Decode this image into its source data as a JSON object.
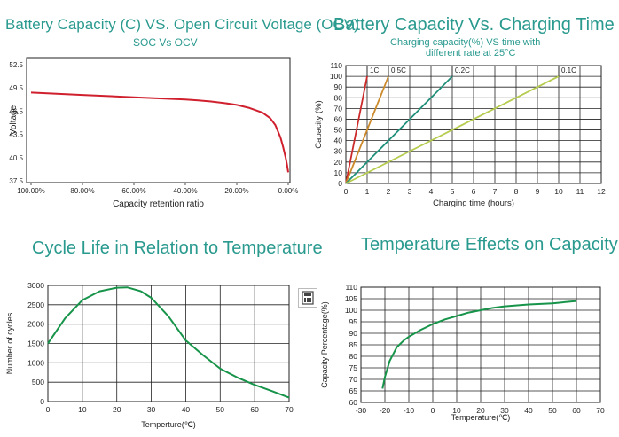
{
  "titles": {
    "ocv": "Battery Capacity (C)  VS.  Open Circuit Voltage (OCV)",
    "ocv_sub": "SOC Vs OCV",
    "charge": "Battery  Capacity Vs.   Charging   Time",
    "charge_sub1": "Charging capacity(%) VS  time with",
    "charge_sub2": "different rate at 25°C",
    "cycle": "Cycle  Life in  Relation to Temperature",
    "temp": "Temperature  Effects  on  Capacity"
  },
  "toolbar": {
    "calculator_icon": "calculator-icon"
  },
  "chart_data": [
    {
      "id": "ocv",
      "type": "line",
      "xlabel": "Capacity retention ratio",
      "ylabel": "Voltage",
      "x_ticks": [
        "100.00%",
        "80.00%",
        "60.00%",
        "40.00%",
        "20.00%",
        "0.00%"
      ],
      "y_ticks": [
        "37.5",
        "40.5",
        "43.5",
        "46.5",
        "49.5",
        "52.5"
      ],
      "xlim": [
        100,
        0
      ],
      "ylim": [
        37.5,
        53.5
      ],
      "grid": false,
      "color": "#d0202e",
      "series": [
        {
          "x": [
            100,
            90,
            80,
            70,
            60,
            50,
            40,
            35,
            30,
            25,
            20,
            15,
            10,
            7,
            5,
            3,
            2,
            1,
            0.5,
            0
          ],
          "y": [
            48.9,
            48.75,
            48.6,
            48.45,
            48.3,
            48.15,
            48.0,
            47.9,
            47.75,
            47.55,
            47.3,
            46.9,
            46.3,
            45.6,
            44.7,
            43.1,
            41.9,
            40.5,
            39.6,
            38.6
          ]
        }
      ]
    },
    {
      "id": "charge",
      "type": "line",
      "xlabel": "Charging time (hours)",
      "ylabel": "Capacity (%)",
      "x_ticks": [
        "0",
        "1",
        "2",
        "3",
        "4",
        "5",
        "6",
        "7",
        "8",
        "9",
        "10",
        "11",
        "12"
      ],
      "y_ticks": [
        "0",
        "10",
        "20",
        "30",
        "40",
        "50",
        "60",
        "70",
        "80",
        "90",
        "100",
        "110"
      ],
      "xlim": [
        0,
        12
      ],
      "ylim": [
        0,
        110
      ],
      "grid": true,
      "series": [
        {
          "name": "1C",
          "x": [
            0,
            1
          ],
          "y": [
            0,
            100
          ],
          "color": "#cc2b2b"
        },
        {
          "name": "0.5C",
          "x": [
            0,
            2
          ],
          "y": [
            0,
            100
          ],
          "color": "#cc8a2b"
        },
        {
          "name": "0.2C",
          "x": [
            0,
            5
          ],
          "y": [
            0,
            100
          ],
          "color": "#1f8f7a"
        },
        {
          "name": "0.1C",
          "x": [
            0,
            10
          ],
          "y": [
            0,
            100
          ],
          "color": "#b5cc4f"
        }
      ]
    },
    {
      "id": "cycle",
      "type": "line",
      "xlabel": "Temperture(℃)",
      "ylabel": "Number of cycles",
      "x_ticks": [
        "0",
        "10",
        "20",
        "30",
        "40",
        "50",
        "60",
        "70"
      ],
      "y_ticks": [
        "0",
        "500",
        "1000",
        "1500",
        "2000",
        "2500",
        "3000"
      ],
      "xlim": [
        0,
        70
      ],
      "ylim": [
        0,
        3000
      ],
      "grid": true,
      "color": "#17944a",
      "series": [
        {
          "x": [
            0,
            5,
            10,
            15,
            20,
            23,
            27,
            30,
            35,
            40,
            45,
            50,
            55,
            60,
            65,
            70
          ],
          "y": [
            1500,
            2150,
            2620,
            2850,
            2940,
            2950,
            2850,
            2680,
            2200,
            1580,
            1200,
            850,
            620,
            430,
            270,
            100
          ]
        }
      ]
    },
    {
      "id": "temp",
      "type": "line",
      "xlabel": "Temperature(℃)",
      "ylabel": "Capacity Percentage(%)",
      "x_ticks": [
        "-30",
        "-20",
        "-10",
        "0",
        "10",
        "20",
        "30",
        "40",
        "50",
        "60",
        "70"
      ],
      "y_ticks": [
        "60",
        "65",
        "70",
        "75",
        "80",
        "85",
        "90",
        "95",
        "100",
        "105",
        "110"
      ],
      "xlim": [
        -30,
        70
      ],
      "ylim": [
        60,
        110
      ],
      "grid": true,
      "color": "#17944a",
      "series": [
        {
          "x": [
            -21,
            -20,
            -18,
            -15,
            -12,
            -10,
            -5,
            0,
            5,
            10,
            15,
            20,
            25,
            30,
            40,
            50,
            60
          ],
          "y": [
            66,
            71,
            78,
            84,
            87,
            88.5,
            91.5,
            94,
            96,
            97.5,
            99,
            100,
            101,
            101.7,
            102.5,
            103,
            104
          ]
        }
      ]
    }
  ]
}
